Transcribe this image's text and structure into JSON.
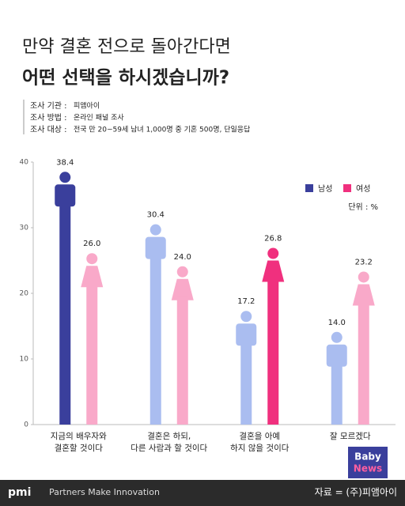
{
  "header": {
    "title_line1": "만약 결혼 전으로 돌아간다면",
    "title_line2": "어떤 선택을 하시겠습니까?",
    "info": [
      {
        "label": "조사 기관 :",
        "value": "피앰아이"
      },
      {
        "label": "조사 방법 :",
        "value": "온라인 패널 조사"
      },
      {
        "label": "조사 대상 :",
        "value": "전국 만 20~59세 남녀 1,000명 중 기혼 500명, 단일응답"
      }
    ]
  },
  "chart_data": {
    "type": "bar",
    "unit": "단위 : %",
    "categories": [
      [
        "지금의 배우자와",
        "결혼할 것이다"
      ],
      [
        "결혼은 하되,",
        "다른 사람과 할 것이다"
      ],
      [
        "결혼을 아예",
        "하지 않을 것이다"
      ],
      [
        "잘 모르겠다"
      ]
    ],
    "series": [
      {
        "name": "남성",
        "color": "#3a3f9c",
        "colors": [
          "#3a3f9c",
          "#aabdf0",
          "#aabdf0",
          "#aabdf0"
        ],
        "values": [
          38.4,
          30.4,
          17.2,
          14.0
        ],
        "value_labels": [
          "38.4",
          "30.4",
          "17.2",
          "14.0"
        ]
      },
      {
        "name": "여성",
        "color": "#f0307e",
        "colors": [
          "#f9a9c9",
          "#f9a9c9",
          "#f0307e",
          "#f9a9c9"
        ],
        "values": [
          26.0,
          24.0,
          26.8,
          23.2
        ],
        "value_labels": [
          "26.0",
          "24.0",
          "26.8",
          "23.2"
        ]
      }
    ],
    "ylim": [
      0,
      40
    ],
    "yticks": [
      0,
      10,
      20,
      30,
      40
    ],
    "legend": "top-right"
  },
  "footer": {
    "brand": "pmi",
    "slogan": "Partners Make Innovation",
    "source": "자료 = (주)피앰아이",
    "logo_line1": "Baby",
    "logo_line2": "News"
  }
}
